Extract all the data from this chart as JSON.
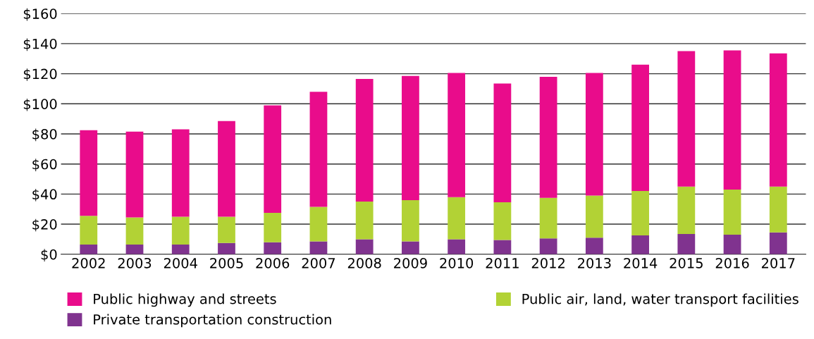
{
  "chart_data": {
    "type": "bar",
    "stacked": true,
    "categories": [
      "2002",
      "2003",
      "2004",
      "2005",
      "2006",
      "2007",
      "2008",
      "2009",
      "2010",
      "2011",
      "2012",
      "2013",
      "2014",
      "2015",
      "2016",
      "2017"
    ],
    "series": [
      {
        "name": "Private transportation construction",
        "color": "#80338f",
        "values": [
          6.5,
          6.5,
          6.5,
          7.5,
          8,
          8.5,
          10,
          8.5,
          10,
          9.5,
          10.5,
          11,
          12.5,
          13.5,
          13,
          14.5
        ]
      },
      {
        "name": "Public air, land, water transport facilities",
        "color": "#b2d235",
        "values": [
          19,
          18,
          18.5,
          17.5,
          19.5,
          23,
          25,
          27.5,
          28,
          25,
          27,
          28,
          29.5,
          31.5,
          30,
          30.5
        ]
      },
      {
        "name": "Public highway and streets",
        "color": "#e90c8b",
        "values": [
          57,
          57,
          58,
          63.5,
          71.5,
          76.5,
          81.5,
          82.5,
          82.5,
          79,
          80.5,
          81.5,
          84,
          90,
          92.5,
          88.5
        ]
      }
    ],
    "ylim": [
      0,
      160
    ],
    "yticks": [
      {
        "value": 0,
        "label": "$0"
      },
      {
        "value": 20,
        "label": "$20"
      },
      {
        "value": 40,
        "label": "$40"
      },
      {
        "value": 60,
        "label": "$60"
      },
      {
        "value": 80,
        "label": "$80"
      },
      {
        "value": 100,
        "label": "$100"
      },
      {
        "value": 120,
        "label": "$120"
      },
      {
        "value": 140,
        "label": "$140"
      },
      {
        "value": 160,
        "label": "$160"
      }
    ],
    "grid": "y",
    "legend": "bottom"
  }
}
